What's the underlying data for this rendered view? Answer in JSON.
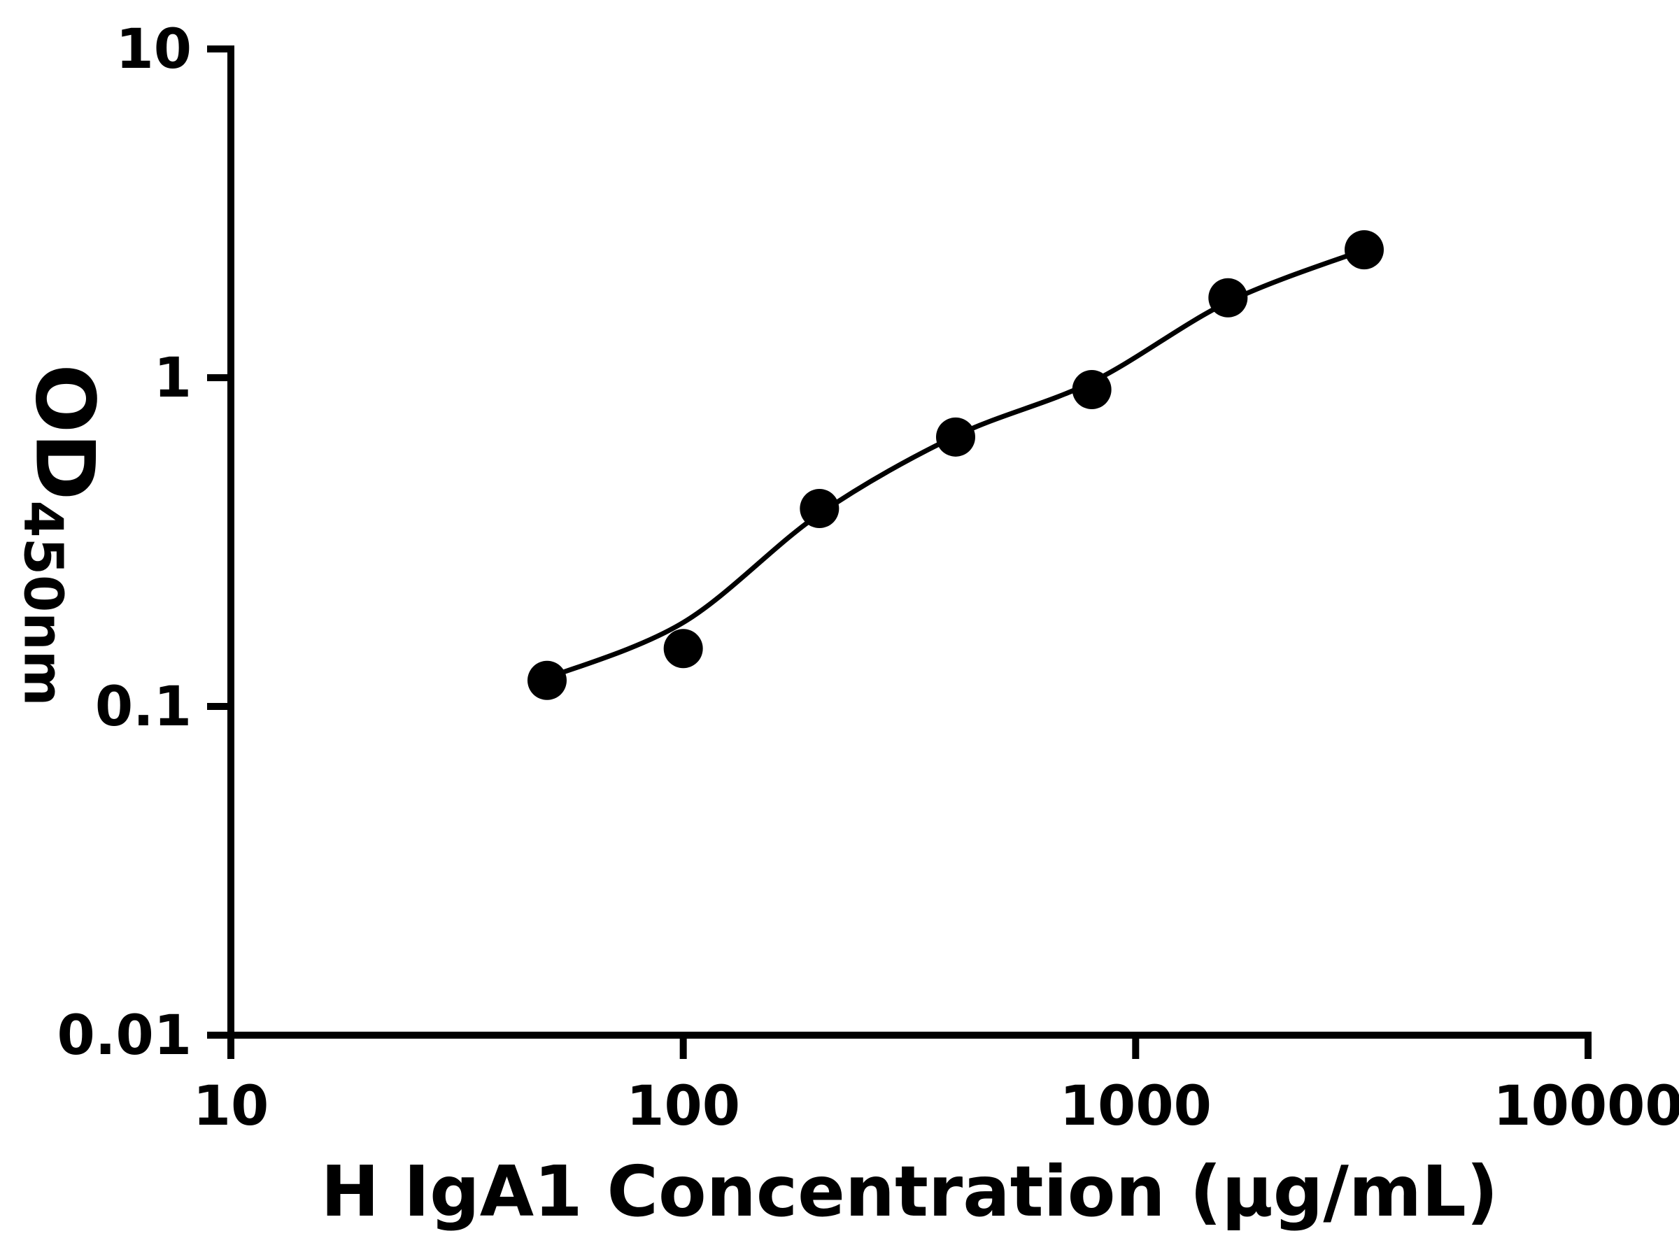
{
  "chart_data": {
    "type": "scatter",
    "xlabel": "H IgA1 Concentration (µg/mL)",
    "ylabel": "OD450nm",
    "ylabel_main": "OD",
    "ylabel_sub": "450nm",
    "x_scale": "log",
    "y_scale": "log",
    "xlim": [
      10,
      10000
    ],
    "ylim": [
      0.01,
      10
    ],
    "x_ticks": [
      10,
      100,
      1000,
      10000
    ],
    "x_tick_labels": [
      "10",
      "100",
      "1000",
      "10000"
    ],
    "y_ticks": [
      0.01,
      0.1,
      1,
      10
    ],
    "y_tick_labels": [
      "0.01",
      "0.1",
      "1",
      "10"
    ],
    "grid": false,
    "legend": false,
    "series": [
      {
        "marker": "circle",
        "marker_color": "#000000",
        "x": [
          50,
          100,
          200,
          400,
          800,
          1600,
          3200
        ],
        "y": [
          0.12,
          0.15,
          0.4,
          0.66,
          0.92,
          1.75,
          2.45
        ]
      }
    ],
    "fit_curve": {
      "color": "#000000",
      "x": [
        50,
        100,
        200,
        400,
        800,
        1600,
        3200
      ],
      "y": [
        0.122,
        0.18,
        0.385,
        0.665,
        0.97,
        1.7,
        2.45
      ]
    },
    "colors": {
      "axis": "#000000",
      "points": "#000000",
      "line": "#000000",
      "background": "#ffffff"
    }
  }
}
